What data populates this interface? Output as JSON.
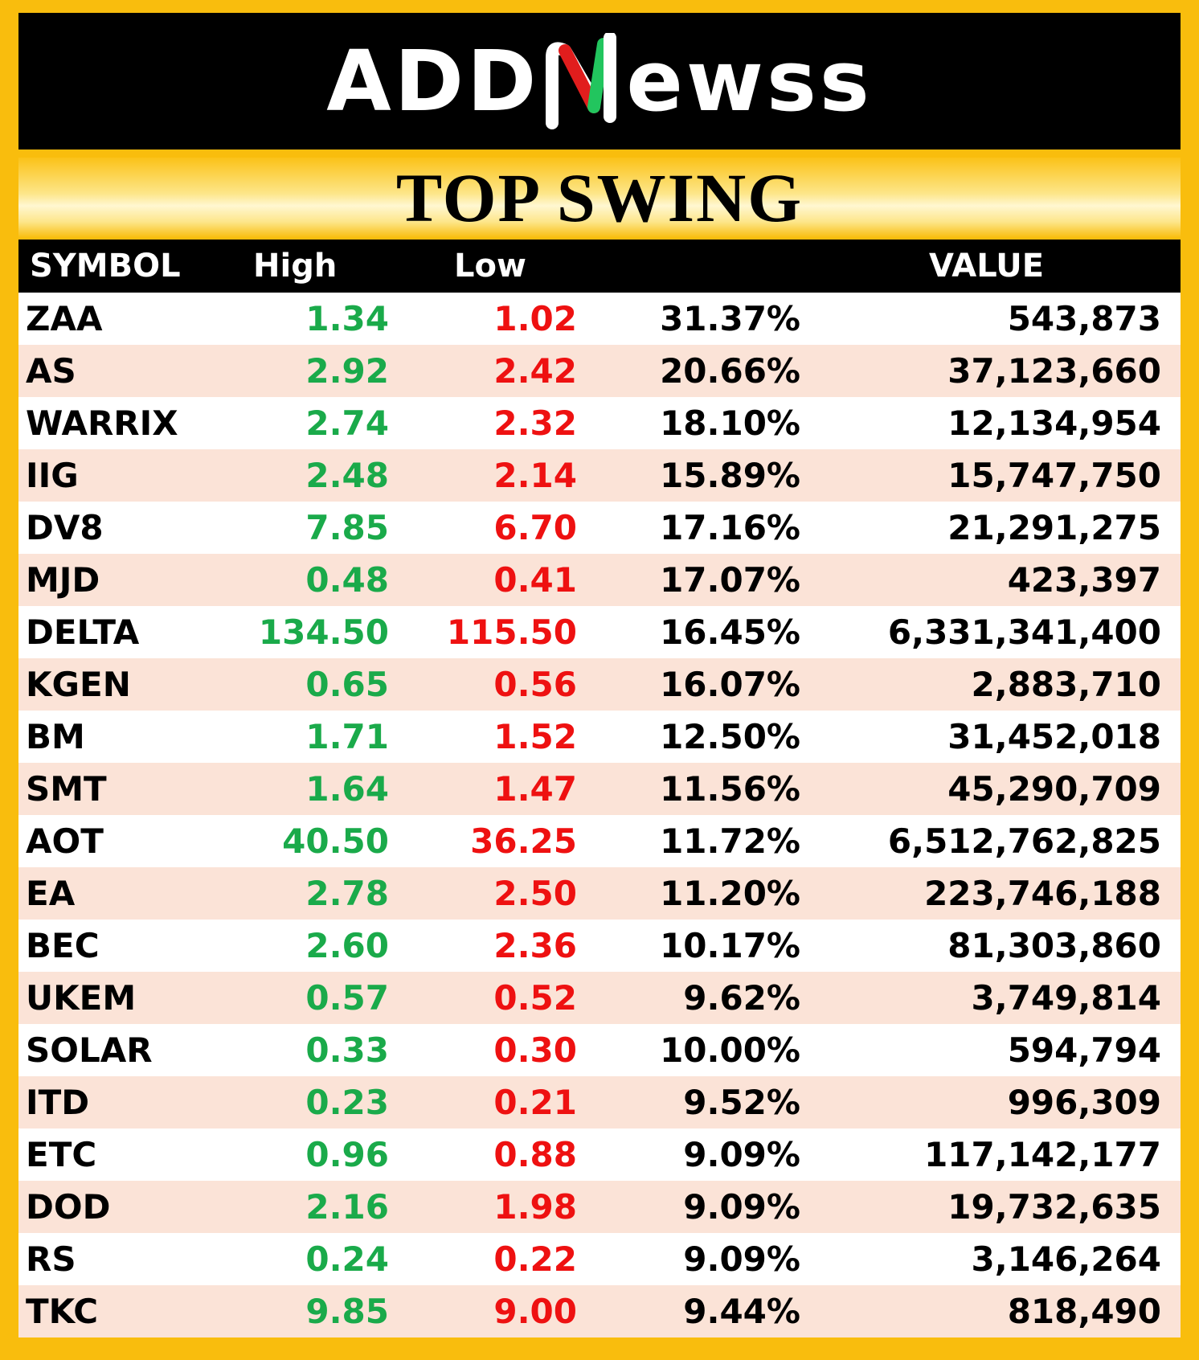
{
  "logo": {
    "left_text": "ADD",
    "right_text": "ewss",
    "colors": {
      "red": "#e11d1d",
      "green": "#22c55e"
    }
  },
  "title": "TOP SWING",
  "columns": {
    "symbol": "SYMBOL",
    "high": "High",
    "low": "Low",
    "pct": "",
    "value": "VALUE"
  },
  "colors": {
    "high": "#1aaa4a",
    "low": "#ee1111",
    "alt_row": "#fbe3d7",
    "frame": "#f9bd0d"
  },
  "rows": [
    {
      "symbol": "ZAA",
      "high": "1.34",
      "low": "1.02",
      "pct": "31.37%",
      "value": "543,873"
    },
    {
      "symbol": "AS",
      "high": "2.92",
      "low": "2.42",
      "pct": "20.66%",
      "value": "37,123,660"
    },
    {
      "symbol": "WARRIX",
      "high": "2.74",
      "low": "2.32",
      "pct": "18.10%",
      "value": "12,134,954"
    },
    {
      "symbol": "IIG",
      "high": "2.48",
      "low": "2.14",
      "pct": "15.89%",
      "value": "15,747,750"
    },
    {
      "symbol": "DV8",
      "high": "7.85",
      "low": "6.70",
      "pct": "17.16%",
      "value": "21,291,275"
    },
    {
      "symbol": "MJD",
      "high": "0.48",
      "low": "0.41",
      "pct": "17.07%",
      "value": "423,397"
    },
    {
      "symbol": "DELTA",
      "high": "134.50",
      "low": "115.50",
      "pct": "16.45%",
      "value": "6,331,341,400"
    },
    {
      "symbol": "KGEN",
      "high": "0.65",
      "low": "0.56",
      "pct": "16.07%",
      "value": "2,883,710"
    },
    {
      "symbol": "BM",
      "high": "1.71",
      "low": "1.52",
      "pct": "12.50%",
      "value": "31,452,018"
    },
    {
      "symbol": "SMT",
      "high": "1.64",
      "low": "1.47",
      "pct": "11.56%",
      "value": "45,290,709"
    },
    {
      "symbol": "AOT",
      "high": "40.50",
      "low": "36.25",
      "pct": "11.72%",
      "value": "6,512,762,825"
    },
    {
      "symbol": "EA",
      "high": "2.78",
      "low": "2.50",
      "pct": "11.20%",
      "value": "223,746,188"
    },
    {
      "symbol": "BEC",
      "high": "2.60",
      "low": "2.36",
      "pct": "10.17%",
      "value": "81,303,860"
    },
    {
      "symbol": "UKEM",
      "high": "0.57",
      "low": "0.52",
      "pct": "9.62%",
      "value": "3,749,814"
    },
    {
      "symbol": "SOLAR",
      "high": "0.33",
      "low": "0.30",
      "pct": "10.00%",
      "value": "594,794"
    },
    {
      "symbol": "ITD",
      "high": "0.23",
      "low": "0.21",
      "pct": "9.52%",
      "value": "996,309"
    },
    {
      "symbol": "ETC",
      "high": "0.96",
      "low": "0.88",
      "pct": "9.09%",
      "value": "117,142,177"
    },
    {
      "symbol": "DOD",
      "high": "2.16",
      "low": "1.98",
      "pct": "9.09%",
      "value": "19,732,635"
    },
    {
      "symbol": "RS",
      "high": "0.24",
      "low": "0.22",
      "pct": "9.09%",
      "value": "3,146,264"
    },
    {
      "symbol": "TKC",
      "high": "9.85",
      "low": "9.00",
      "pct": "9.44%",
      "value": "818,490"
    }
  ]
}
